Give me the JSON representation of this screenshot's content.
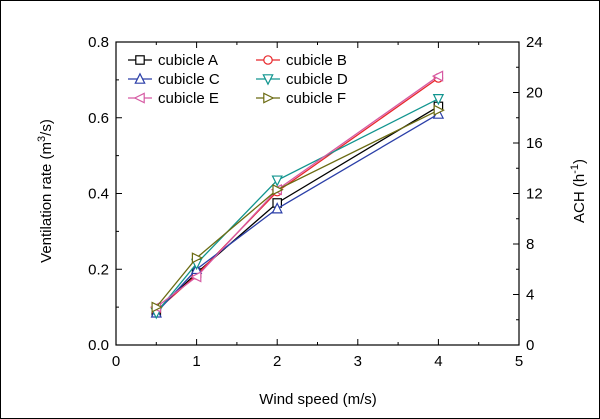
{
  "chart_data": {
    "type": "line",
    "x_title": "Wind speed (m/s)",
    "y_title_main": "Ventilation rate (m",
    "y_title_sup": "3",
    "y_title_end": "/s)",
    "y2_title_main": "ACH (h",
    "y2_title_sup": "-1",
    "y2_title_end": ")",
    "xlim": [
      0,
      5
    ],
    "ylim": [
      0.0,
      0.8
    ],
    "y2lim": [
      0,
      24
    ],
    "x_ticks": [
      "0",
      "1",
      "2",
      "3",
      "4",
      "5"
    ],
    "y_ticks": [
      "0.0",
      "0.2",
      "0.4",
      "0.6",
      "0.8"
    ],
    "y2_ticks": [
      "0",
      "4",
      "8",
      "12",
      "16",
      "20",
      "24"
    ],
    "x": [
      0.5,
      1,
      2,
      4
    ],
    "series": [
      {
        "name": "cubicle A",
        "color": "#000000",
        "marker": "square",
        "values": [
          0.09,
          0.19,
          0.375,
          0.63
        ]
      },
      {
        "name": "cubicle B",
        "color": "#e8262a",
        "marker": "circle",
        "values": [
          0.09,
          0.185,
          0.405,
          0.705
        ]
      },
      {
        "name": "cubicle C",
        "color": "#2b3fa8",
        "marker": "triangle-up",
        "values": [
          0.085,
          0.2,
          0.36,
          0.61
        ]
      },
      {
        "name": "cubicle D",
        "color": "#11958f",
        "marker": "triangle-down",
        "values": [
          0.085,
          0.215,
          0.435,
          0.65
        ]
      },
      {
        "name": "cubicle E",
        "color": "#d65aa3",
        "marker": "triangle-left",
        "values": [
          0.1,
          0.18,
          0.41,
          0.71
        ]
      },
      {
        "name": "cubicle F",
        "color": "#6b6b12",
        "marker": "triangle-right",
        "values": [
          0.1,
          0.23,
          0.41,
          0.62
        ]
      }
    ],
    "legend_position": "top-left",
    "grid": false
  }
}
